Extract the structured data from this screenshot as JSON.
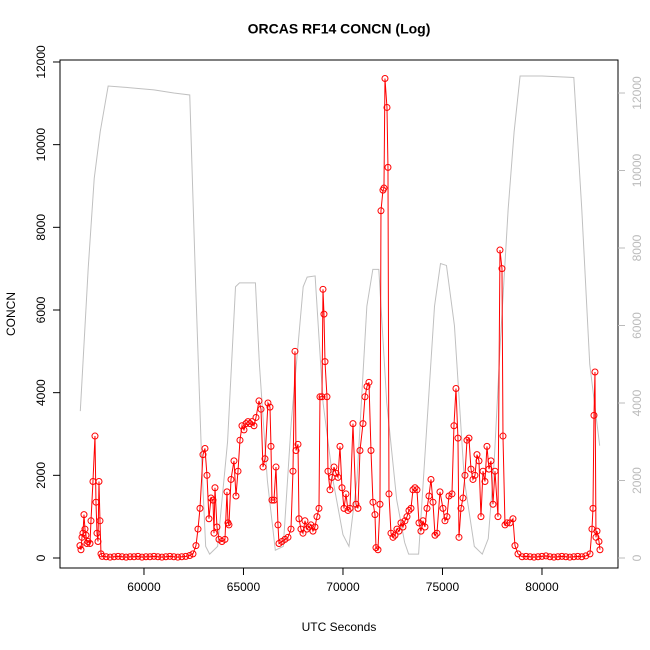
{
  "chart_data": {
    "type": "line",
    "title": "ORCAS RF14 CONCN (Log)",
    "x_label": "UTC Seconds",
    "y_label": "CONCN",
    "xlim": [
      55780,
      83820
    ],
    "ylim": [
      -242,
      12048
    ],
    "y2lim": [
      -258,
      12852
    ],
    "xticks": [
      60000,
      65000,
      70000,
      75000,
      80000
    ],
    "yticks": [
      0,
      2000,
      4000,
      6000,
      8000,
      10000,
      12000
    ],
    "y2ticks": [
      0,
      2000,
      4000,
      6000,
      8000,
      10000,
      12000
    ],
    "series": [
      {
        "color": "#ff0000",
        "marker": "circle",
        "x": [
          56784,
          56834,
          56885,
          56935,
          56985,
          57035,
          57086,
          57136,
          57186,
          57287,
          57337,
          57437,
          57538,
          57588,
          57639,
          57689,
          57739,
          57789,
          57840,
          57900,
          58100,
          58300,
          58500,
          58700,
          58900,
          59100,
          59300,
          59500,
          59700,
          59900,
          60100,
          60300,
          60500,
          60700,
          60900,
          61100,
          61300,
          61500,
          61700,
          61900,
          62100,
          62300,
          62462,
          62613,
          62714,
          62814,
          62965,
          63065,
          63166,
          63266,
          63367,
          63467,
          63518,
          63568,
          63668,
          63769,
          63920,
          64070,
          64171,
          64221,
          64271,
          64372,
          64523,
          64623,
          64724,
          64824,
          64925,
          65025,
          65126,
          65226,
          65327,
          65427,
          65528,
          65628,
          65779,
          65880,
          65980,
          66081,
          66231,
          66332,
          66382,
          66432,
          66533,
          66633,
          66734,
          66784,
          66935,
          67085,
          67236,
          67387,
          67487,
          67588,
          67638,
          67739,
          67789,
          67889,
          67990,
          68090,
          68191,
          68291,
          68392,
          68492,
          68593,
          68693,
          68794,
          68844,
          68945,
          68995,
          69045,
          69096,
          69196,
          69246,
          69347,
          69447,
          69548,
          69648,
          69749,
          69849,
          69950,
          70050,
          70151,
          70251,
          70352,
          70502,
          70653,
          70754,
          70854,
          71005,
          71105,
          71206,
          71306,
          71407,
          71507,
          71608,
          71658,
          71759,
          71859,
          71909,
          72010,
          72060,
          72110,
          72211,
          72261,
          72311,
          72412,
          72512,
          72613,
          72713,
          72814,
          72914,
          73015,
          73115,
          73216,
          73316,
          73417,
          73517,
          73618,
          73718,
          73819,
          73919,
          74020,
          74120,
          74221,
          74321,
          74422,
          74522,
          74623,
          74723,
          74874,
          75025,
          75125,
          75226,
          75326,
          75477,
          75577,
          75678,
          75778,
          75829,
          75929,
          76030,
          76130,
          76231,
          76331,
          76432,
          76532,
          76633,
          76733,
          76834,
          76934,
          77035,
          77135,
          77236,
          77336,
          77437,
          77537,
          77638,
          77789,
          77889,
          77990,
          78040,
          78141,
          78241,
          78392,
          78542,
          78643,
          78794,
          79000,
          79200,
          79400,
          79600,
          79800,
          80000,
          80200,
          80400,
          80600,
          80800,
          81000,
          81200,
          81400,
          81600,
          81800,
          82000,
          82200,
          82412,
          82512,
          82563,
          82613,
          82663,
          82713,
          82764,
          82864,
          82914
        ],
        "values": [
          300,
          200,
          500,
          600,
          1050,
          700,
          550,
          350,
          400,
          350,
          900,
          1850,
          2950,
          1350,
          600,
          400,
          1850,
          900,
          100,
          40,
          30,
          20,
          30,
          40,
          30,
          20,
          30,
          30,
          40,
          20,
          30,
          30,
          40,
          30,
          20,
          30,
          40,
          30,
          20,
          30,
          40,
          60,
          100,
          300,
          700,
          1200,
          2500,
          2650,
          2000,
          950,
          1450,
          1400,
          600,
          1700,
          750,
          450,
          400,
          450,
          1600,
          850,
          800,
          1900,
          2350,
          1500,
          2100,
          2850,
          3200,
          3100,
          3250,
          3300,
          3250,
          3300,
          3200,
          3400,
          3800,
          3600,
          2200,
          2400,
          3750,
          3650,
          2700,
          1400,
          1400,
          2200,
          800,
          350,
          400,
          450,
          500,
          700,
          2100,
          5000,
          2600,
          2750,
          950,
          700,
          600,
          900,
          700,
          750,
          800,
          650,
          750,
          1000,
          1200,
          3900,
          3900,
          6500,
          5900,
          4750,
          3900,
          2100,
          1650,
          1950,
          2200,
          2050,
          1950,
          2700,
          1700,
          1200,
          1550,
          1150,
          1200,
          3250,
          1300,
          1200,
          2600,
          3250,
          3900,
          4150,
          4250,
          2600,
          1350,
          1050,
          250,
          200,
          1300,
          8400,
          8900,
          8950,
          11600,
          10900,
          9450,
          1550,
          600,
          500,
          550,
          700,
          650,
          850,
          750,
          900,
          1000,
          1150,
          1200,
          1650,
          1700,
          1650,
          850,
          650,
          900,
          750,
          1200,
          1500,
          1900,
          1350,
          550,
          600,
          1600,
          1200,
          900,
          1000,
          1500,
          1550,
          3200,
          4100,
          2900,
          500,
          1200,
          1450,
          2000,
          2850,
          2900,
          2150,
          1900,
          2000,
          2500,
          2350,
          1000,
          2100,
          1850,
          2700,
          2150,
          2350,
          1300,
          2100,
          1000,
          7450,
          7000,
          2950,
          800,
          850,
          850,
          950,
          300,
          100,
          30,
          40,
          30,
          20,
          30,
          40,
          50,
          30,
          20,
          30,
          40,
          30,
          20,
          30,
          40,
          30,
          50,
          100,
          700,
          1200,
          3450,
          4500,
          500,
          650,
          400,
          200
        ]
      },
      {
        "color": "#c0c0c0",
        "axis": "y2",
        "x": [
          56800,
          57200,
          57500,
          57800,
          58200,
          59000,
          60500,
          61500,
          62300,
          62600,
          62900,
          63100,
          63300,
          63700,
          64200,
          64600,
          64800,
          65600,
          65800,
          66200,
          66600,
          67000,
          67400,
          68000,
          68200,
          68600,
          69000,
          69500,
          70000,
          70300,
          70700,
          71200,
          71500,
          71800,
          72200,
          72700,
          73100,
          73300,
          73800,
          74100,
          74600,
          74900,
          75200,
          75600,
          76100,
          76600,
          77000,
          77300,
          77600,
          77900,
          78300,
          78600,
          78900,
          80000,
          81600,
          82000,
          82400,
          82900
        ],
        "values": [
          3790,
          7500,
          9800,
          11000,
          12180,
          12150,
          12080,
          12000,
          11950,
          7000,
          2500,
          300,
          100,
          300,
          3000,
          7000,
          7100,
          7100,
          5000,
          2000,
          200,
          300,
          3500,
          7000,
          7250,
          7280,
          4000,
          2000,
          600,
          300,
          2000,
          6500,
          7450,
          7450,
          4000,
          1500,
          400,
          100,
          100,
          2500,
          6500,
          7600,
          7550,
          6000,
          2000,
          300,
          100,
          500,
          2500,
          5500,
          9000,
          11000,
          12440,
          12440,
          12400,
          9000,
          5000,
          2900
        ]
      }
    ]
  }
}
